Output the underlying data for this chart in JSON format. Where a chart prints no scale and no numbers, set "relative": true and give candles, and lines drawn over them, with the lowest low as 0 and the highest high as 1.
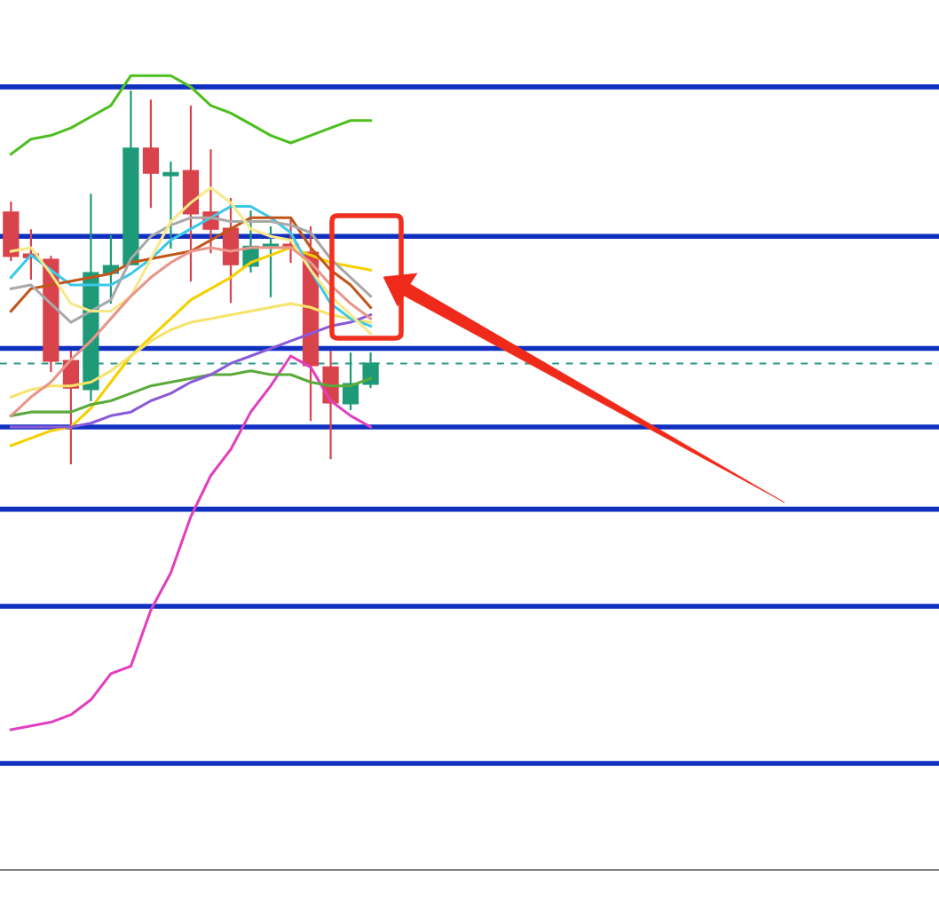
{
  "chart_data": {
    "type": "candlestick",
    "relative": true,
    "tick_labels": false,
    "categories": [
      null,
      null,
      null,
      null,
      null,
      null,
      null,
      null,
      null,
      null,
      null,
      null,
      null,
      null,
      null,
      null,
      null,
      null,
      null
    ],
    "ohlc": [
      [
        0.675,
        0.703,
        0.544,
        0.556
      ],
      [
        0.563,
        0.629,
        0.494,
        0.553
      ],
      [
        0.549,
        0.558,
        0.247,
        0.276
      ],
      [
        0.278,
        0.304,
        0,
        0.204
      ],
      [
        0.2,
        0.724,
        0.169,
        0.513
      ],
      [
        0.511,
        0.613,
        0.43,
        0.532
      ],
      [
        0.534,
        1,
        0.534,
        0.846
      ],
      [
        0.846,
        0.976,
        0.686,
        0.779
      ],
      [
        0.772,
        0.81,
        0.577,
        0.781
      ],
      [
        0.786,
        0.96,
        0.489,
        0.67
      ],
      [
        0.675,
        0.843,
        0.565,
        0.629
      ],
      [
        0.632,
        0.713,
        0.432,
        0.534
      ],
      [
        0.53,
        0.679,
        0.513,
        0.584
      ],
      [
        0.582,
        0.637,
        0.447,
        0.589
      ],
      [
        0.589,
        0.656,
        0.539,
        0.577
      ],
      [
        0.568,
        0.637,
        0.116,
        0.264
      ],
      [
        0.261,
        0.304,
        0.014,
        0.164
      ],
      [
        0.162,
        0.299,
        0.145,
        0.216
      ],
      [
        0.214,
        0.299,
        0.204,
        0.271
      ]
    ],
    "colors": [
      "#d9434b",
      "#d9434b",
      "#d9434b",
      "#d9434b",
      "#1e9a78",
      "#1e9a78",
      "#1e9a78",
      "#d9434b",
      "#1e9a78",
      "#d9434b",
      "#d9434b",
      "#d9434b",
      "#1e9a78",
      "#1e9a78",
      "#d9434b",
      "#d9434b",
      "#d9434b",
      "#1e9a78",
      "#1e9a78"
    ],
    "series": [
      {
        "type": "line",
        "color": "#4cbf1f",
        "values": [
          0.83,
          0.87,
          0.88,
          0.9,
          0.93,
          0.96,
          1.04,
          1.04,
          1.04,
          1.01,
          0.96,
          0.94,
          0.91,
          0.88,
          0.86,
          0.88,
          0.9,
          0.92,
          0.92
        ]
      },
      {
        "type": "line",
        "color": "#e040c0",
        "values": [
          -0.71,
          -0.7,
          -0.69,
          -0.67,
          -0.63,
          -0.56,
          -0.54,
          -0.39,
          -0.29,
          -0.14,
          -0.03,
          0.04,
          0.14,
          0.21,
          0.29,
          0.26,
          0.17,
          0.13,
          0.1
        ]
      },
      {
        "type": "line",
        "color": "#f5d000",
        "values": [
          0.05,
          0.07,
          0.09,
          0.1,
          0.15,
          0.22,
          0.29,
          0.34,
          0.39,
          0.44,
          0.47,
          0.5,
          0.54,
          0.56,
          0.58,
          0.56,
          0.54,
          0.53,
          0.52
        ]
      },
      {
        "type": "line",
        "color": "#f7e36a",
        "values": [
          0.18,
          0.2,
          0.21,
          0.21,
          0.22,
          0.25,
          0.29,
          0.33,
          0.36,
          0.38,
          0.39,
          0.4,
          0.41,
          0.42,
          0.43,
          0.42,
          0.4,
          0.39,
          0.38
        ]
      },
      {
        "type": "line",
        "color": "#5aaa3a",
        "values": [
          0.13,
          0.14,
          0.14,
          0.14,
          0.16,
          0.17,
          0.19,
          0.21,
          0.22,
          0.23,
          0.24,
          0.24,
          0.25,
          0.24,
          0.24,
          0.22,
          0.21,
          0.21,
          0.23
        ]
      },
      {
        "type": "line",
        "color": "#8a5ad8",
        "values": [
          0.1,
          0.1,
          0.1,
          0.1,
          0.11,
          0.13,
          0.14,
          0.17,
          0.19,
          0.22,
          0.24,
          0.27,
          0.29,
          0.31,
          0.33,
          0.35,
          0.37,
          0.38,
          0.4
        ]
      },
      {
        "type": "line",
        "color": "#3cc8e8",
        "values": [
          0.5,
          0.56,
          0.52,
          0.48,
          0.48,
          0.48,
          0.51,
          0.55,
          0.6,
          0.63,
          0.66,
          0.69,
          0.69,
          0.66,
          0.62,
          0.52,
          0.43,
          0.39,
          0.37
        ]
      },
      {
        "type": "line",
        "color": "#c0561a",
        "values": [
          0.41,
          0.47,
          0.48,
          0.49,
          0.5,
          0.51,
          0.54,
          0.55,
          0.56,
          0.57,
          0.6,
          0.63,
          0.66,
          0.66,
          0.66,
          0.58,
          0.52,
          0.48,
          0.42
        ]
      },
      {
        "type": "line",
        "color": "#a8a8a8",
        "values": [
          0.47,
          0.48,
          0.43,
          0.38,
          0.41,
          0.44,
          0.55,
          0.61,
          0.64,
          0.66,
          0.66,
          0.65,
          0.65,
          0.65,
          0.64,
          0.62,
          0.55,
          0.5,
          0.45
        ]
      },
      {
        "type": "line",
        "color": "#f9e88a",
        "values": [
          0.57,
          0.58,
          0.51,
          0.43,
          0.41,
          0.41,
          0.45,
          0.55,
          0.65,
          0.7,
          0.74,
          0.7,
          0.63,
          0.61,
          0.6,
          0.52,
          0.45,
          0.4,
          0.35
        ]
      },
      {
        "type": "line",
        "color": "#e8968a",
        "values": [
          0.13,
          0.18,
          0.22,
          0.28,
          0.33,
          0.39,
          0.45,
          0.5,
          0.54,
          0.57,
          0.58,
          0.57,
          0.58,
          0.58,
          0.58,
          0.54,
          0.48,
          0.43,
          0.39
        ]
      }
    ],
    "ref_lines": [
      {
        "axis": "y",
        "value": 1.01,
        "color": "#1030c0",
        "line_style": "solid"
      },
      {
        "axis": "y",
        "value": 0.61,
        "color": "#1030c0",
        "line_style": "solid"
      },
      {
        "axis": "y",
        "value": 0.31,
        "color": "#1030c0",
        "line_style": "solid"
      },
      {
        "axis": "y",
        "value": 0.27,
        "color": "#2a9a8a",
        "line_style": "dashed"
      },
      {
        "axis": "y",
        "value": 0.1,
        "color": "#1030c0",
        "line_style": "solid"
      },
      {
        "axis": "y",
        "value": -0.12,
        "color": "#1030c0",
        "line_style": "solid"
      },
      {
        "axis": "y",
        "value": -0.38,
        "color": "#1030c0",
        "line_style": "solid"
      },
      {
        "axis": "y",
        "value": -0.8,
        "color": "#1030c0",
        "line_style": "solid"
      }
    ]
  }
}
